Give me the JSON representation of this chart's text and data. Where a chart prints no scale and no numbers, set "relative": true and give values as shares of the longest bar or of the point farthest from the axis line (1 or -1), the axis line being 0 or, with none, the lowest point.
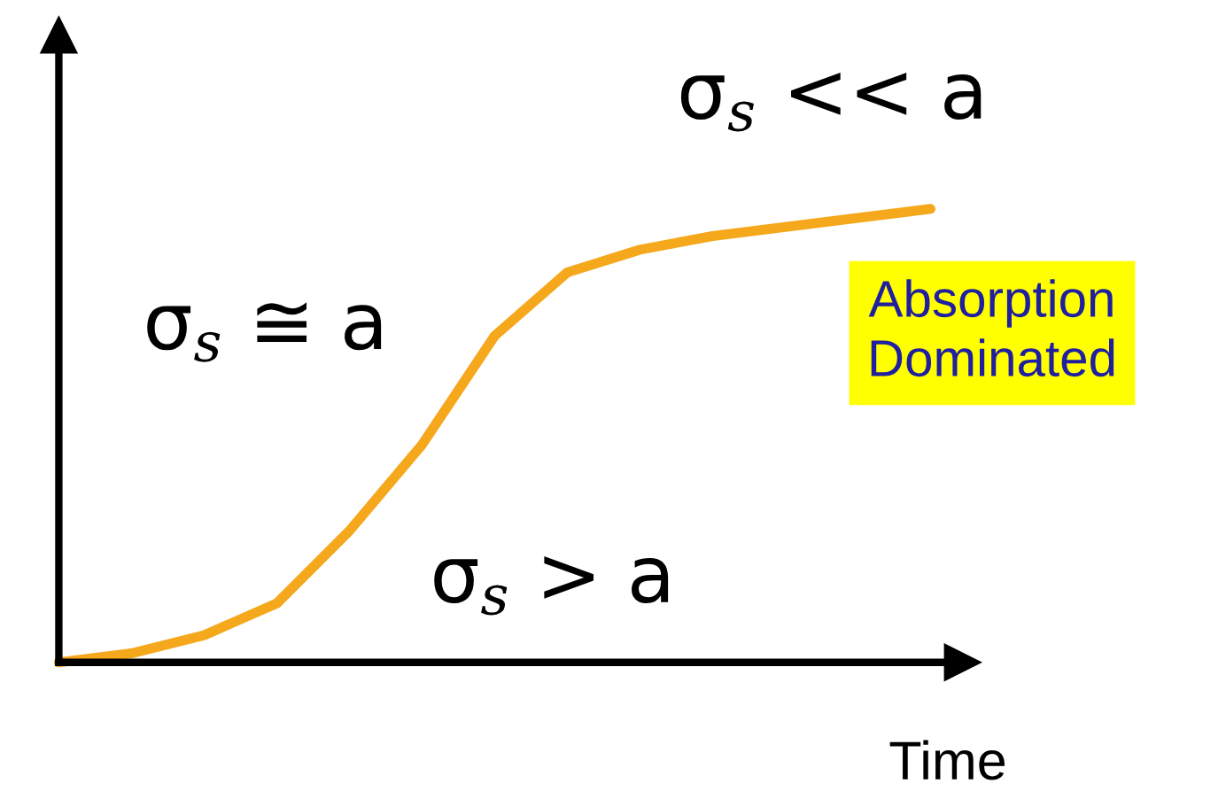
{
  "chart_data": {
    "type": "line",
    "relative": true,
    "xlabel": "Time",
    "categories": [
      null,
      null,
      null,
      null,
      null,
      null,
      null,
      null,
      null,
      null,
      null,
      null,
      null
    ],
    "series": [
      {
        "color": "#f5a81c",
        "values": [
          0,
          0.02,
          0.06,
          0.13,
          0.29,
          0.48,
          0.72,
          0.86,
          0.91,
          0.94,
          0.96,
          0.98,
          1
        ]
      }
    ],
    "annotations": [
      "σ$_{s}$ ≅ a",
      "σ$_{s}$ > a",
      "σ$_{s}$ << a",
      "Absorption\nDominated"
    ],
    "grid": false,
    "marker": "none",
    "line_style": "solid"
  }
}
